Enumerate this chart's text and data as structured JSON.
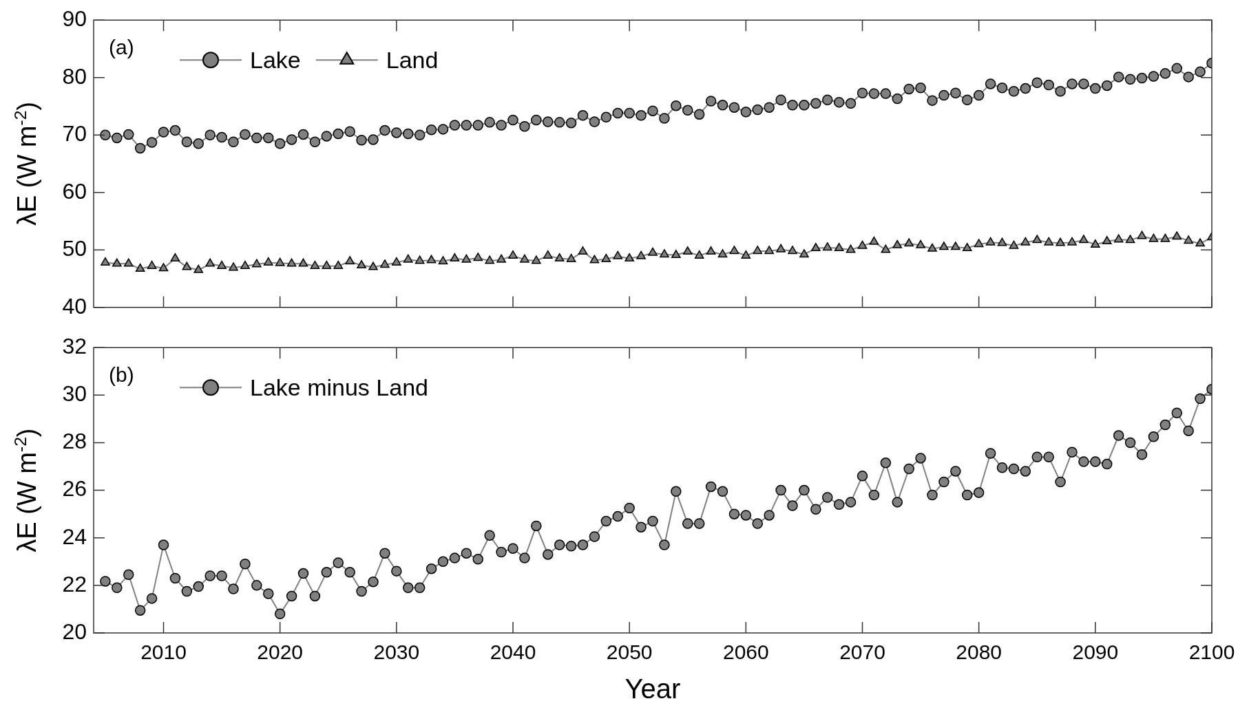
{
  "chart_data": [
    {
      "type": "line",
      "ylabel": "λE (W m$^{-2}$)",
      "annotations": [
        "(a)"
      ],
      "legend": "top left",
      "tick_labels": "y",
      "marker": "circle",
      "line_style": "solid",
      "x": [
        2005,
        2006,
        2007,
        2008,
        2009,
        2010,
        2011,
        2012,
        2013,
        2014,
        2015,
        2016,
        2017,
        2018,
        2019,
        2020,
        2021,
        2022,
        2023,
        2024,
        2025,
        2026,
        2027,
        2028,
        2029,
        2030,
        2031,
        2032,
        2033,
        2034,
        2035,
        2036,
        2037,
        2038,
        2039,
        2040,
        2041,
        2042,
        2043,
        2044,
        2045,
        2046,
        2047,
        2048,
        2049,
        2050,
        2051,
        2052,
        2053,
        2054,
        2055,
        2056,
        2057,
        2058,
        2059,
        2060,
        2061,
        2062,
        2063,
        2064,
        2065,
        2066,
        2067,
        2068,
        2069,
        2070,
        2071,
        2072,
        2073,
        2074,
        2075,
        2076,
        2077,
        2078,
        2079,
        2080,
        2081,
        2082,
        2083,
        2084,
        2085,
        2086,
        2087,
        2088,
        2089,
        2090,
        2091,
        2092,
        2093,
        2094,
        2095,
        2096,
        2097,
        2098,
        2099,
        2100
      ],
      "xlim": [
        2004,
        2100
      ],
      "xticks": [
        2010,
        2020,
        2030,
        2040,
        2050,
        2060,
        2070,
        2080,
        2090,
        2100
      ],
      "ylim": [
        40,
        90
      ],
      "yticks": [
        40,
        50,
        60,
        70,
        80,
        90
      ],
      "series": [
        {
          "name": "Lake",
          "color": "#808080",
          "values": [
            70.0,
            69.5,
            70.1,
            67.7,
            68.7,
            70.5,
            70.8,
            68.8,
            68.5,
            70.0,
            69.6,
            68.8,
            70.1,
            69.5,
            69.5,
            68.5,
            69.2,
            70.1,
            68.8,
            69.8,
            70.2,
            70.6,
            69.1,
            69.2,
            70.8,
            70.4,
            70.2,
            70.0,
            70.9,
            71.0,
            71.7,
            71.7,
            71.7,
            72.2,
            71.7,
            72.6,
            71.5,
            72.6,
            72.3,
            72.2,
            72.1,
            73.4,
            72.3,
            73.1,
            73.8,
            73.8,
            73.4,
            74.2,
            72.9,
            75.1,
            74.3,
            73.6,
            75.9,
            75.2,
            74.8,
            74.0,
            74.4,
            74.8,
            76.1,
            75.2,
            75.2,
            75.5,
            76.1,
            75.7,
            75.5,
            77.3,
            77.2,
            77.2,
            76.3,
            78.0,
            78.2,
            76.0,
            76.9,
            77.3,
            76.1,
            76.9,
            78.9,
            78.2,
            77.6,
            78.1,
            79.1,
            78.7,
            77.6,
            78.9,
            78.9,
            78.1,
            78.6,
            80.1,
            79.7,
            79.9,
            80.2,
            80.7,
            81.6,
            80.1,
            81.0,
            82.5
          ]
        },
        {
          "name": "Land",
          "color": "#808080",
          "marker": "triangle",
          "values": [
            47.8,
            47.6,
            47.6,
            46.7,
            47.2,
            46.8,
            48.5,
            47.0,
            46.5,
            47.6,
            47.2,
            46.9,
            47.2,
            47.5,
            47.8,
            47.7,
            47.6,
            47.6,
            47.2,
            47.2,
            47.2,
            48.0,
            47.3,
            47.0,
            47.4,
            47.8,
            48.3,
            48.1,
            48.2,
            48.0,
            48.5,
            48.3,
            48.6,
            48.1,
            48.3,
            49.0,
            48.3,
            48.1,
            49.0,
            48.5,
            48.4,
            49.7,
            48.2,
            48.4,
            48.9,
            48.5,
            48.9,
            49.5,
            49.2,
            49.1,
            49.7,
            49.0,
            49.7,
            49.2,
            49.8,
            49.0,
            49.8,
            49.8,
            50.1,
            49.8,
            49.2,
            50.3,
            50.4,
            50.3,
            50.0,
            50.7,
            51.4,
            50.0,
            50.8,
            51.1,
            50.8,
            50.2,
            50.5,
            50.5,
            50.3,
            51.0,
            51.3,
            51.2,
            50.7,
            51.3,
            51.7,
            51.3,
            51.2,
            51.3,
            51.7,
            50.9,
            51.5,
            51.8,
            51.7,
            52.4,
            51.9,
            51.9,
            52.3,
            51.6,
            51.1,
            52.2
          ]
        }
      ]
    },
    {
      "type": "line",
      "xlabel": "Year",
      "ylabel": "λE (W m$^{-2}$)",
      "annotations": [
        "(b)"
      ],
      "legend": "top left",
      "marker": "circle",
      "line_style": "solid",
      "x": [
        2005,
        2006,
        2007,
        2008,
        2009,
        2010,
        2011,
        2012,
        2013,
        2014,
        2015,
        2016,
        2017,
        2018,
        2019,
        2020,
        2021,
        2022,
        2023,
        2024,
        2025,
        2026,
        2027,
        2028,
        2029,
        2030,
        2031,
        2032,
        2033,
        2034,
        2035,
        2036,
        2037,
        2038,
        2039,
        2040,
        2041,
        2042,
        2043,
        2044,
        2045,
        2046,
        2047,
        2048,
        2049,
        2050,
        2051,
        2052,
        2053,
        2054,
        2055,
        2056,
        2057,
        2058,
        2059,
        2060,
        2061,
        2062,
        2063,
        2064,
        2065,
        2066,
        2067,
        2068,
        2069,
        2070,
        2071,
        2072,
        2073,
        2074,
        2075,
        2076,
        2077,
        2078,
        2079,
        2080,
        2081,
        2082,
        2083,
        2084,
        2085,
        2086,
        2087,
        2088,
        2089,
        2090,
        2091,
        2092,
        2093,
        2094,
        2095,
        2096,
        2097,
        2098,
        2099,
        2100
      ],
      "xlim": [
        2004,
        2100
      ],
      "xticks": [
        2010,
        2020,
        2030,
        2040,
        2050,
        2060,
        2070,
        2080,
        2090,
        2100
      ],
      "ylim": [
        20,
        32
      ],
      "yticks": [
        20,
        22,
        24,
        26,
        28,
        30,
        32
      ],
      "series": [
        {
          "name": "Lake minus Land",
          "color": "#808080",
          "values": [
            22.17,
            21.9,
            22.45,
            20.95,
            21.45,
            23.7,
            22.3,
            21.75,
            21.95,
            22.4,
            22.4,
            21.85,
            22.9,
            22.0,
            21.65,
            20.8,
            21.55,
            22.5,
            21.55,
            22.55,
            22.95,
            22.55,
            21.75,
            22.15,
            23.35,
            22.6,
            21.9,
            21.9,
            22.7,
            23.0,
            23.15,
            23.35,
            23.1,
            24.1,
            23.4,
            23.55,
            23.15,
            24.5,
            23.3,
            23.7,
            23.65,
            23.7,
            24.05,
            24.7,
            24.9,
            25.25,
            24.45,
            24.7,
            23.7,
            25.95,
            24.6,
            24.6,
            26.15,
            25.95,
            25.0,
            24.95,
            24.6,
            24.95,
            26.0,
            25.35,
            26.0,
            25.2,
            25.7,
            25.4,
            25.5,
            26.6,
            25.8,
            27.15,
            25.5,
            26.9,
            27.35,
            25.8,
            26.35,
            26.8,
            25.8,
            25.9,
            27.55,
            26.95,
            26.9,
            26.8,
            27.4,
            27.4,
            26.35,
            27.6,
            27.2,
            27.2,
            27.1,
            28.3,
            28.0,
            27.5,
            28.25,
            28.75,
            29.25,
            28.5,
            29.85,
            30.25
          ]
        }
      ]
    }
  ]
}
